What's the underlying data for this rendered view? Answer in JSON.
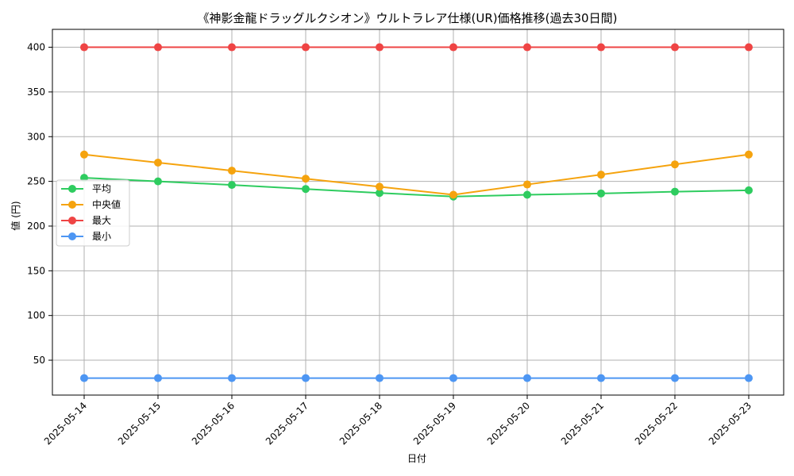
{
  "chart_data": {
    "type": "line",
    "title": "《神影金龍ドラッグルクシオン》ウルトラレア仕様(UR)価格推移(過去30日間)",
    "xlabel": "日付",
    "ylabel": "値 (円)",
    "categories": [
      "2025-05-14",
      "2025-05-15",
      "2025-05-16",
      "2025-05-17",
      "2025-05-18",
      "2025-05-19",
      "2025-05-20",
      "2025-05-21",
      "2025-05-22",
      "2025-05-23"
    ],
    "ylim": [
      11,
      420
    ],
    "yticks": [
      50,
      100,
      150,
      200,
      250,
      300,
      350,
      400
    ],
    "grid": true,
    "legend_position": "center-left",
    "series": [
      {
        "name": "平均",
        "color": "#2ecc5f",
        "values": [
          254,
          250,
          246,
          241.5,
          237,
          233,
          235,
          236.5,
          238.5,
          240
        ]
      },
      {
        "name": "中央値",
        "color": "#f5a30e",
        "values": [
          280,
          271,
          262,
          253,
          244,
          235,
          246.5,
          257.5,
          269,
          280
        ]
      },
      {
        "name": "最大",
        "color": "#ef4444",
        "values": [
          400,
          400,
          400,
          400,
          400,
          400,
          400,
          400,
          400,
          400
        ]
      },
      {
        "name": "最小",
        "color": "#4d96f3",
        "values": [
          30,
          30,
          30,
          30,
          30,
          30,
          30,
          30,
          30,
          30
        ]
      }
    ]
  }
}
